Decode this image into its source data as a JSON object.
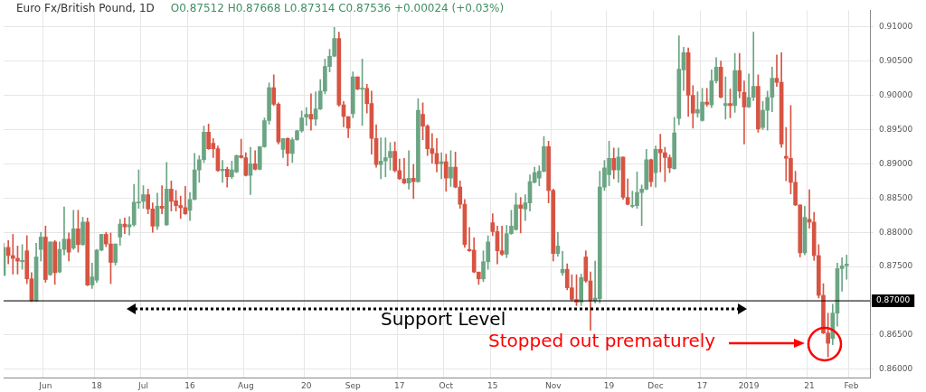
{
  "chart_data": {
    "type": "candlestick",
    "title": "Euro Fx/British Pound, 1D",
    "subtitle": "O0.87512 H0.87668 L0.87314 C0.87536 +0.00024 (+0.03%)",
    "categories": [
      null,
      null,
      null,
      null,
      null,
      null,
      null,
      null,
      null,
      "Jun",
      null,
      null,
      null,
      null,
      null,
      null,
      null,
      null,
      null,
      null,
      "18",
      null,
      null,
      null,
      null,
      null,
      null,
      null,
      null,
      null,
      "Jul",
      null,
      null,
      null,
      null,
      null,
      null,
      null,
      null,
      null,
      "16",
      null,
      null,
      null,
      null,
      null,
      null,
      null,
      null,
      null,
      null,
      null,
      "Aug",
      null,
      null,
      null,
      null,
      null,
      null,
      null,
      null,
      null,
      null,
      null,
      null,
      "20",
      null,
      null,
      null,
      null,
      null,
      null,
      null,
      null,
      null,
      "Sep",
      null,
      null,
      null,
      null,
      null,
      null,
      null,
      null,
      null,
      "17",
      null,
      null,
      null,
      null,
      null,
      null,
      null,
      null,
      null,
      "Oct",
      null,
      null,
      null,
      null,
      null,
      null,
      null,
      null,
      null,
      "15",
      null,
      null,
      null,
      null,
      null,
      null,
      null,
      null,
      null,
      null,
      null,
      null,
      "Nov",
      null,
      null,
      null,
      null,
      null,
      null,
      null,
      null,
      null,
      null,
      null,
      "19",
      null,
      null,
      null,
      null,
      null,
      null,
      null,
      null,
      null,
      "Dec",
      null,
      null,
      null,
      null,
      null,
      null,
      null,
      null,
      null,
      "17",
      null,
      null,
      null,
      null,
      null,
      null,
      null,
      null,
      null,
      "2019",
      null,
      null,
      null,
      null,
      null,
      null,
      null,
      null,
      null,
      null,
      null,
      null,
      "21",
      null,
      null,
      null,
      null,
      null,
      null,
      null,
      null,
      "Feb",
      null,
      null,
      null,
      null
    ],
    "ohlc": [
      [
        0.8737,
        0.8784,
        0.8737,
        0.8778
      ],
      [
        0.8778,
        0.8788,
        0.8754,
        0.8766
      ],
      [
        0.8766,
        0.8797,
        0.8739,
        0.8762
      ],
      [
        0.8762,
        0.878,
        0.8739,
        0.8758
      ],
      [
        0.8757,
        0.8782,
        0.8746,
        0.8759
      ],
      [
        0.8773,
        0.8795,
        0.8725,
        0.8732
      ],
      [
        0.8732,
        0.8741,
        0.8699,
        0.87
      ],
      [
        0.87,
        0.8784,
        0.8699,
        0.8764
      ],
      [
        0.8775,
        0.88,
        0.8758,
        0.8793
      ],
      [
        0.8793,
        0.8809,
        0.8727,
        0.8731
      ],
      [
        0.8738,
        0.8786,
        0.8737,
        0.8786
      ],
      [
        0.8786,
        0.8788,
        0.8724,
        0.8741
      ],
      [
        0.8742,
        0.8786,
        0.8741,
        0.8775
      ],
      [
        0.8775,
        0.8837,
        0.8767,
        0.879
      ],
      [
        0.879,
        0.8799,
        0.8758,
        0.8771
      ],
      [
        0.8777,
        0.8832,
        0.8775,
        0.8805
      ],
      [
        0.8805,
        0.8832,
        0.8771,
        0.8782
      ],
      [
        0.8782,
        0.8822,
        0.8781,
        0.8815
      ],
      [
        0.8815,
        0.8821,
        0.8722,
        0.8723
      ],
      [
        0.8723,
        0.8755,
        0.8718,
        0.8735
      ],
      [
        0.873,
        0.8775,
        0.8727,
        0.8774
      ],
      [
        0.8774,
        0.8797,
        0.8773,
        0.8797
      ],
      [
        0.8797,
        0.88,
        0.8779,
        0.8783
      ],
      [
        0.8783,
        0.8799,
        0.8725,
        0.8756
      ],
      [
        0.8756,
        0.8783,
        0.8752,
        0.8783
      ],
      [
        0.8793,
        0.8819,
        0.8781,
        0.8812
      ],
      [
        0.8812,
        0.8821,
        0.8798,
        0.8808
      ],
      [
        0.8808,
        0.8823,
        0.8796,
        0.8811
      ],
      [
        0.8811,
        0.887,
        0.8809,
        0.8844
      ],
      [
        0.8843,
        0.8891,
        0.8835,
        0.8844
      ],
      [
        0.8845,
        0.8868,
        0.8835,
        0.8855
      ],
      [
        0.8855,
        0.8863,
        0.8827,
        0.8834
      ],
      [
        0.8834,
        0.8843,
        0.88,
        0.8809
      ],
      [
        0.8809,
        0.8857,
        0.8804,
        0.8838
      ],
      [
        0.8838,
        0.8868,
        0.8827,
        0.8835
      ],
      [
        0.8811,
        0.8902,
        0.881,
        0.8863
      ],
      [
        0.8863,
        0.8875,
        0.8831,
        0.8845
      ],
      [
        0.8846,
        0.8861,
        0.8831,
        0.8839
      ],
      [
        0.8839,
        0.8853,
        0.882,
        0.8836
      ],
      [
        0.8836,
        0.8867,
        0.8826,
        0.8827
      ],
      [
        0.8832,
        0.8858,
        0.8817,
        0.8848
      ],
      [
        0.8848,
        0.8915,
        0.8847,
        0.8891
      ],
      [
        0.8891,
        0.8912,
        0.8873,
        0.8906
      ],
      [
        0.8906,
        0.8955,
        0.8902,
        0.8946
      ],
      [
        0.8946,
        0.8958,
        0.8921,
        0.8922
      ],
      [
        0.893,
        0.8937,
        0.8909,
        0.8922
      ],
      [
        0.8922,
        0.8926,
        0.8889,
        0.889
      ],
      [
        0.889,
        0.8905,
        0.8873,
        0.8892
      ],
      [
        0.8892,
        0.8895,
        0.8866,
        0.8881
      ],
      [
        0.8881,
        0.8904,
        0.8878,
        0.8891
      ],
      [
        0.8888,
        0.8913,
        0.8887,
        0.8912
      ],
      [
        0.8912,
        0.8936,
        0.8908,
        0.8909
      ],
      [
        0.8909,
        0.8916,
        0.8882,
        0.8883
      ],
      [
        0.8883,
        0.8924,
        0.8855,
        0.89
      ],
      [
        0.89,
        0.8919,
        0.8891,
        0.8892
      ],
      [
        0.8892,
        0.8925,
        0.8891,
        0.8925
      ],
      [
        0.8925,
        0.8967,
        0.8924,
        0.8963
      ],
      [
        0.8963,
        0.9018,
        0.8958,
        0.9011
      ],
      [
        0.9011,
        0.903,
        0.8985,
        0.8987
      ],
      [
        0.8987,
        0.8989,
        0.8929,
        0.8932
      ],
      [
        0.8921,
        0.8937,
        0.8909,
        0.8937
      ],
      [
        0.8937,
        0.8938,
        0.8897,
        0.8915
      ],
      [
        0.8915,
        0.8938,
        0.8902,
        0.8935
      ],
      [
        0.8935,
        0.8949,
        0.8934,
        0.8948
      ],
      [
        0.8948,
        0.8977,
        0.8946,
        0.8967
      ],
      [
        0.8968,
        0.8982,
        0.8956,
        0.8972
      ],
      [
        0.8972,
        0.9002,
        0.8949,
        0.8965
      ],
      [
        0.8965,
        0.9005,
        0.8956,
        0.898
      ],
      [
        0.898,
        0.9023,
        0.8979,
        0.9006
      ],
      [
        0.9006,
        0.9053,
        0.9002,
        0.9042
      ],
      [
        0.9042,
        0.9067,
        0.9034,
        0.9057
      ],
      [
        0.9057,
        0.9099,
        0.9056,
        0.9083
      ],
      [
        0.9083,
        0.9092,
        0.8984,
        0.8986
      ],
      [
        0.8986,
        0.8991,
        0.8954,
        0.8969
      ],
      [
        0.8969,
        0.8969,
        0.8938,
        0.8952
      ],
      [
        0.8973,
        0.9034,
        0.8967,
        0.9027
      ],
      [
        0.9027,
        0.9027,
        0.9008,
        0.9009
      ],
      [
        0.9009,
        0.9053,
        0.8956,
        0.901
      ],
      [
        0.901,
        0.9016,
        0.8974,
        0.8988
      ],
      [
        0.8988,
        0.9006,
        0.8914,
        0.8937
      ],
      [
        0.8937,
        0.8957,
        0.8895,
        0.8899
      ],
      [
        0.8899,
        0.8938,
        0.8878,
        0.8904
      ],
      [
        0.8904,
        0.8938,
        0.8881,
        0.8909
      ],
      [
        0.8909,
        0.8931,
        0.8891,
        0.8918
      ],
      [
        0.8918,
        0.8932,
        0.8888,
        0.889
      ],
      [
        0.889,
        0.8907,
        0.8877,
        0.8878
      ],
      [
        0.8878,
        0.8908,
        0.8871,
        0.8872
      ],
      [
        0.8872,
        0.8919,
        0.8863,
        0.8879
      ],
      [
        0.8879,
        0.8899,
        0.8849,
        0.8874
      ],
      [
        0.8874,
        0.8995,
        0.8873,
        0.8978
      ],
      [
        0.8972,
        0.8989,
        0.8935,
        0.8955
      ],
      [
        0.8955,
        0.8957,
        0.8912,
        0.8922
      ],
      [
        0.8922,
        0.8944,
        0.8901,
        0.8915
      ],
      [
        0.8915,
        0.8937,
        0.8888,
        0.89
      ],
      [
        0.89,
        0.8916,
        0.8878,
        0.8903
      ],
      [
        0.8903,
        0.8914,
        0.886,
        0.8879
      ],
      [
        0.8879,
        0.8919,
        0.8867,
        0.8895
      ],
      [
        0.8895,
        0.8917,
        0.8865,
        0.8866
      ],
      [
        0.8866,
        0.8875,
        0.8835,
        0.8841
      ],
      [
        0.8841,
        0.8848,
        0.8778,
        0.8782
      ],
      [
        0.8775,
        0.8807,
        0.8772,
        0.8773
      ],
      [
        0.8774,
        0.8792,
        0.8741,
        0.8742
      ],
      [
        0.8742,
        0.8742,
        0.8724,
        0.8732
      ],
      [
        0.8732,
        0.8773,
        0.8728,
        0.8757
      ],
      [
        0.8757,
        0.8795,
        0.8746,
        0.8786
      ],
      [
        0.8814,
        0.8827,
        0.8795,
        0.8801
      ],
      [
        0.8801,
        0.8809,
        0.8754,
        0.8773
      ],
      [
        0.8773,
        0.8809,
        0.8766,
        0.8768
      ],
      [
        0.8768,
        0.881,
        0.8763,
        0.8798
      ],
      [
        0.8798,
        0.8832,
        0.8797,
        0.8809
      ],
      [
        0.8804,
        0.8857,
        0.8803,
        0.884
      ],
      [
        0.884,
        0.8851,
        0.8799,
        0.8835
      ],
      [
        0.8834,
        0.8855,
        0.8817,
        0.8843
      ],
      [
        0.8843,
        0.8884,
        0.8831,
        0.8874
      ],
      [
        0.8873,
        0.8895,
        0.8872,
        0.8887
      ],
      [
        0.8879,
        0.8897,
        0.8868,
        0.8889
      ],
      [
        0.8889,
        0.894,
        0.8888,
        0.8925
      ],
      [
        0.8925,
        0.8933,
        0.8843,
        0.8861
      ],
      [
        0.8861,
        0.8863,
        0.8758,
        0.8769
      ],
      [
        0.8769,
        0.88,
        0.8765,
        0.878
      ],
      [
        0.8741,
        0.8772,
        0.8737,
        0.8746
      ],
      [
        0.8746,
        0.8754,
        0.8716,
        0.8719
      ],
      [
        0.8719,
        0.8738,
        0.87,
        0.8702
      ],
      [
        0.8702,
        0.8738,
        0.8693,
        0.8698
      ],
      [
        0.8698,
        0.8739,
        0.8693,
        0.8734
      ],
      [
        0.8764,
        0.8773,
        0.8727,
        0.8729
      ],
      [
        0.8729,
        0.8742,
        0.8657,
        0.87
      ],
      [
        0.87,
        0.8758,
        0.8697,
        0.8704
      ],
      [
        0.8703,
        0.8889,
        0.8697,
        0.8866
      ],
      [
        0.8866,
        0.8905,
        0.8861,
        0.8894
      ],
      [
        0.8884,
        0.8933,
        0.8868,
        0.8908
      ],
      [
        0.8908,
        0.8923,
        0.8878,
        0.8891
      ],
      [
        0.8891,
        0.8923,
        0.8873,
        0.891
      ],
      [
        0.891,
        0.891,
        0.8848,
        0.8851
      ],
      [
        0.8851,
        0.8878,
        0.884,
        0.8841
      ],
      [
        0.8838,
        0.886,
        0.8836,
        0.8839
      ],
      [
        0.8839,
        0.8888,
        0.8835,
        0.8858
      ],
      [
        0.8858,
        0.8869,
        0.881,
        0.8863
      ],
      [
        0.8863,
        0.8921,
        0.8862,
        0.8906
      ],
      [
        0.8906,
        0.8907,
        0.8867,
        0.8874
      ],
      [
        0.8887,
        0.8926,
        0.8866,
        0.8921
      ],
      [
        0.8921,
        0.8943,
        0.8888,
        0.8916
      ],
      [
        0.8916,
        0.8924,
        0.8874,
        0.8909
      ],
      [
        0.8909,
        0.8913,
        0.8887,
        0.8894
      ],
      [
        0.8893,
        0.8968,
        0.8892,
        0.8945
      ],
      [
        0.8966,
        0.9087,
        0.8957,
        0.9038
      ],
      [
        0.9037,
        0.907,
        0.9007,
        0.9062
      ],
      [
        0.9062,
        0.9069,
        0.8969,
        0.9
      ],
      [
        0.9,
        0.9014,
        0.8952,
        0.8974
      ],
      [
        0.8974,
        0.9005,
        0.8968,
        0.8979
      ],
      [
        0.8963,
        0.901,
        0.8962,
        0.899
      ],
      [
        0.899,
        0.901,
        0.8984,
        0.8987
      ],
      [
        0.8986,
        0.9037,
        0.8982,
        0.9021
      ],
      [
        0.9021,
        0.9055,
        0.9018,
        0.9041
      ],
      [
        0.9041,
        0.905,
        0.8996,
        0.8997
      ],
      [
        0.8985,
        0.9027,
        0.8965,
        0.8988
      ],
      [
        0.8988,
        0.9009,
        0.8967,
        0.8985
      ],
      [
        0.8985,
        0.9061,
        0.8975,
        0.9036
      ],
      [
        0.9036,
        0.9061,
        0.8996,
        0.9006
      ],
      [
        0.9004,
        0.9021,
        0.8929,
        0.8983
      ],
      [
        0.8983,
        0.9031,
        0.8982,
        0.8997
      ],
      [
        0.8997,
        0.9092,
        0.8992,
        0.9013
      ],
      [
        0.9013,
        0.903,
        0.8946,
        0.8951
      ],
      [
        0.8953,
        0.8991,
        0.895,
        0.8978
      ],
      [
        0.8978,
        0.9006,
        0.8949,
        0.8997
      ],
      [
        0.8997,
        0.9041,
        0.8976,
        0.9025
      ],
      [
        0.9025,
        0.9059,
        0.9013,
        0.9019
      ],
      [
        0.9019,
        0.9062,
        0.8924,
        0.8929
      ],
      [
        0.8911,
        0.8953,
        0.8875,
        0.8908
      ],
      [
        0.8908,
        0.8985,
        0.8856,
        0.8873
      ],
      [
        0.8873,
        0.8889,
        0.8839,
        0.884
      ],
      [
        0.884,
        0.884,
        0.8764,
        0.877
      ],
      [
        0.877,
        0.8838,
        0.8767,
        0.8822
      ],
      [
        0.8819,
        0.8862,
        0.8806,
        0.8815
      ],
      [
        0.8815,
        0.8829,
        0.8759,
        0.8766
      ],
      [
        0.8766,
        0.8782,
        0.8704,
        0.8708
      ],
      [
        0.8708,
        0.8725,
        0.8652,
        0.8653
      ],
      [
        0.8653,
        0.8682,
        0.8618,
        0.8638
      ],
      [
        0.8645,
        0.8695,
        0.8636,
        0.8682
      ],
      [
        0.8682,
        0.8755,
        0.8663,
        0.8747
      ],
      [
        0.8747,
        0.8763,
        0.8714,
        0.8751
      ],
      [
        0.87512,
        0.87668,
        0.87314,
        0.87536
      ],
      null,
      null,
      null,
      null,
      null
    ],
    "colors": [
      "#6ba583",
      "#d75442",
      "#d75442",
      "#d75442",
      "#6ba583",
      "#d75442",
      "#d75442",
      "#6ba583",
      "#6ba583",
      "#d75442",
      "#6ba583",
      "#d75442",
      "#6ba583",
      "#6ba583",
      "#d75442",
      "#6ba583",
      "#d75442",
      "#6ba583",
      "#d75442",
      "#6ba583",
      "#6ba583",
      "#6ba583",
      "#d75442",
      "#d75442",
      "#6ba583",
      "#6ba583",
      "#d75442",
      "#6ba583",
      "#6ba583",
      "#6ba583",
      "#6ba583",
      "#d75442",
      "#d75442",
      "#6ba583",
      "#d75442",
      "#6ba583",
      "#d75442",
      "#d75442",
      "#d75442",
      "#d75442",
      "#6ba583",
      "#6ba583",
      "#6ba583",
      "#6ba583",
      "#d75442",
      "#d75442",
      "#d75442",
      "#6ba583",
      "#d75442",
      "#6ba583",
      "#6ba583",
      "#d75442",
      "#d75442",
      "#6ba583",
      "#d75442",
      "#6ba583",
      "#6ba583",
      "#6ba583",
      "#d75442",
      "#d75442",
      "#6ba583",
      "#d75442",
      "#6ba583",
      "#6ba583",
      "#6ba583",
      "#6ba583",
      "#d75442",
      "#6ba583",
      "#6ba583",
      "#6ba583",
      "#6ba583",
      "#6ba583",
      "#d75442",
      "#d75442",
      "#d75442",
      "#6ba583",
      "#d75442",
      "#6ba583",
      "#d75442",
      "#d75442",
      "#d75442",
      "#6ba583",
      "#6ba583",
      "#6ba583",
      "#d75442",
      "#d75442",
      "#d75442",
      "#6ba583",
      "#d75442",
      "#6ba583",
      "#d75442",
      "#d75442",
      "#d75442",
      "#d75442",
      "#6ba583",
      "#d75442",
      "#6ba583",
      "#d75442",
      "#d75442",
      "#d75442",
      "#d75442",
      "#d75442",
      "#d75442",
      "#6ba583",
      "#6ba583",
      "#d75442",
      "#d75442",
      "#d75442",
      "#6ba583",
      "#6ba583",
      "#6ba583",
      "#d75442",
      "#6ba583",
      "#6ba583",
      "#6ba583",
      "#6ba583",
      "#6ba583",
      "#d75442",
      "#d75442",
      "#6ba583",
      "#6ba583",
      "#d75442",
      "#d75442",
      "#d75442",
      "#6ba583",
      "#d75442",
      "#d75442",
      "#6ba583",
      "#6ba583",
      "#6ba583",
      "#6ba583",
      "#d75442",
      "#6ba583",
      "#d75442",
      "#d75442",
      "#6ba583",
      "#6ba583",
      "#6ba583",
      "#6ba583",
      "#d75442",
      "#6ba583",
      "#d75442",
      "#d75442",
      "#d75442",
      "#6ba583",
      "#6ba583",
      "#6ba583",
      "#d75442",
      "#d75442",
      "#6ba583",
      "#6ba583",
      "#d75442",
      "#6ba583",
      "#6ba583",
      "#d75442",
      "#6ba583",
      "#d75442",
      "#6ba583",
      "#d75442",
      "#d75442",
      "#6ba583",
      "#6ba583",
      "#d75442",
      "#6ba583",
      "#6ba583",
      "#6ba583",
      "#d75442",
      "#d75442",
      "#d75442",
      "#d75442",
      "#d75442",
      "#d75442",
      "#6ba583",
      "#d75442",
      "#d75442",
      "#d75442",
      "#d75442",
      "#d75442",
      "#6ba583",
      "#6ba583",
      "#6ba583",
      "#6ba583",
      null,
      null,
      null,
      null,
      null
    ],
    "ylim": [
      0.8588,
      0.9124
    ],
    "yticks": [
      {
        "value": 0.86,
        "label": "0.86000"
      },
      {
        "value": 0.865,
        "label": "0.86500"
      },
      {
        "value": 0.87,
        "label": null
      },
      {
        "value": 0.875,
        "label": "0.87500"
      },
      {
        "value": 0.88,
        "label": "0.88000"
      },
      {
        "value": 0.885,
        "label": "0.88500"
      },
      {
        "value": 0.89,
        "label": "0.89000"
      },
      {
        "value": 0.895,
        "label": "0.89500"
      },
      {
        "value": 0.9,
        "label": "0.90000"
      },
      {
        "value": 0.905,
        "label": "0.90500"
      },
      {
        "value": 0.91,
        "label": "0.91000"
      }
    ],
    "grid": true,
    "ref_lines": [
      {
        "axis": "y",
        "value": 0.87,
        "label": "0.87000",
        "color": "#000000"
      }
    ],
    "annotations": [
      "Support Level",
      "Stopped out prematurely"
    ]
  }
}
